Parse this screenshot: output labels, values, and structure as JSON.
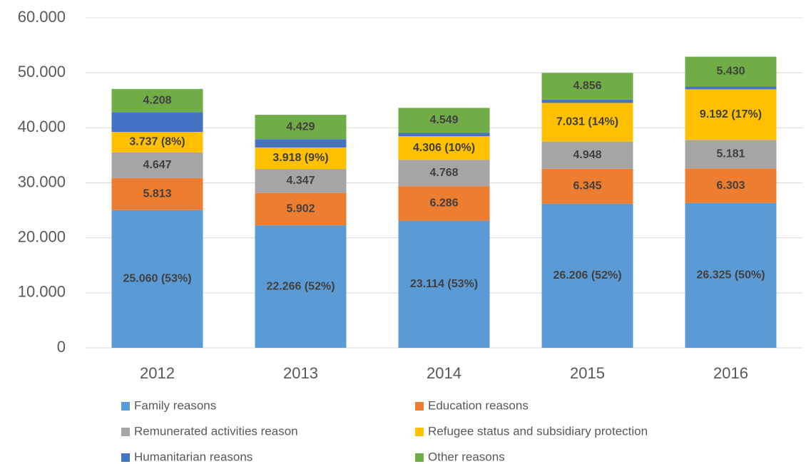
{
  "chart_data": {
    "type": "stacked_bar",
    "categories": [
      "2012",
      "2013",
      "2014",
      "2015",
      "2016"
    ],
    "series": [
      {
        "name": "Family reasons",
        "color": "#5b9bd5",
        "values": [
          25060,
          22266,
          23114,
          26206,
          26325
        ],
        "value_labels": [
          "25.060 (53%)",
          "22.266 (52%)",
          "23.114 (53%)",
          "26.206 (52%)",
          "26.325 (50%)"
        ]
      },
      {
        "name": "Education reasons",
        "color": "#ed7d31",
        "values": [
          5813,
          5902,
          6286,
          6345,
          6303
        ],
        "value_labels": [
          "5.813",
          "5.902",
          "6.286",
          "6.345",
          "6.303"
        ]
      },
      {
        "name": "Remunerated activities reason",
        "color": "#a5a5a5",
        "values": [
          4647,
          4347,
          4768,
          4948,
          5181
        ],
        "value_labels": [
          "4.647",
          "4.347",
          "4.768",
          "4.948",
          "5.181"
        ]
      },
      {
        "name": "Refugee status and subsidiary protection",
        "color": "#ffc000",
        "values": [
          3737,
          3918,
          4306,
          7031,
          9192
        ],
        "value_labels": [
          "3.737 (8%)",
          "3.918 (9%)",
          "4.306 (10%)",
          "7.031 (14%)",
          "9.192 (17%)"
        ]
      },
      {
        "name": "Humanitarian reasons",
        "color": "#4472c4",
        "values": [
          3600,
          1500,
          600,
          600,
          500
        ]
      },
      {
        "name": "Other reasons",
        "color": "#70ad47",
        "values": [
          4208,
          4429,
          4549,
          4856,
          5430
        ],
        "value_labels": [
          "4.208",
          "4.429",
          "4.549",
          "4.856",
          "5.430"
        ]
      }
    ],
    "ylim": [
      0,
      60000
    ],
    "yticks": [
      0,
      {
        "value": 10000,
        "label": "10.000"
      },
      {
        "value": 20000,
        "label": "20.000"
      },
      {
        "value": 30000,
        "label": "30.000"
      },
      {
        "value": 40000,
        "label": "40.000"
      },
      {
        "value": 50000,
        "label": "50.000"
      },
      {
        "value": 60000,
        "label": "60.000"
      }
    ],
    "grid": true
  }
}
